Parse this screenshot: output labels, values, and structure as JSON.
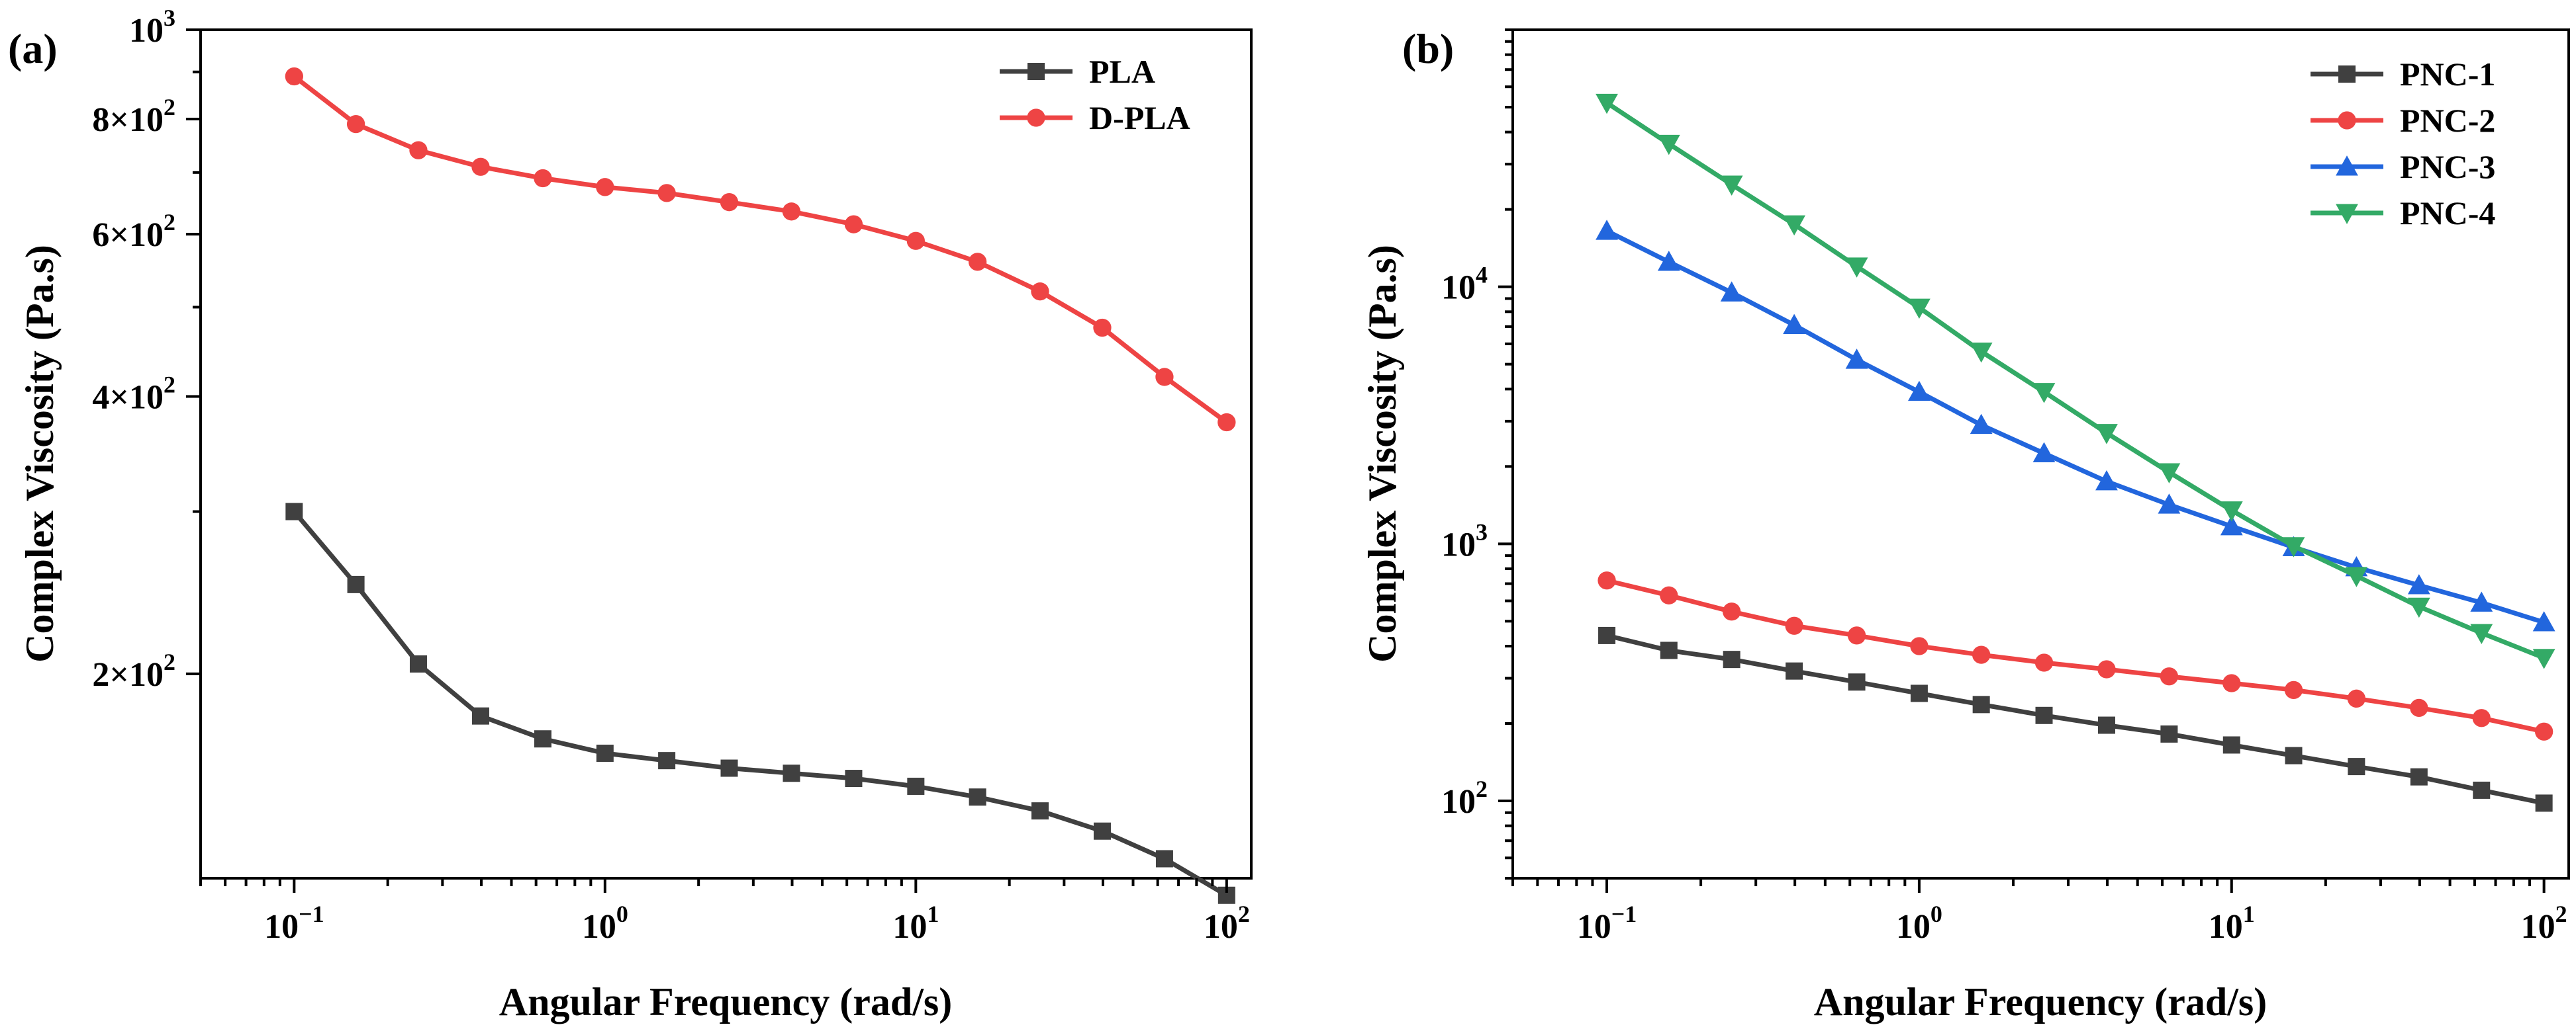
{
  "chart_data": [
    {
      "panel_label": "(a)",
      "type": "line",
      "title": "",
      "xlabel": "Angular Frequency (rad/s)",
      "ylabel": "Complex Viscosity (Pa.s)",
      "x_scale": "log",
      "y_scale": "log",
      "xlim": [
        0.05,
        120
      ],
      "ylim": [
        120,
        1000
      ],
      "x_ticks": [
        {
          "value": 0.1,
          "base": "10",
          "exp": "−1"
        },
        {
          "value": 1,
          "base": "10",
          "exp": "0"
        },
        {
          "value": 10,
          "base": "10",
          "exp": "1"
        },
        {
          "value": 100,
          "base": "10",
          "exp": "2"
        }
      ],
      "y_ticks": [
        {
          "value": 200,
          "base": "2×10",
          "exp": "2"
        },
        {
          "value": 400,
          "base": "4×10",
          "exp": "2"
        },
        {
          "value": 600,
          "base": "6×10",
          "exp": "2"
        },
        {
          "value": 800,
          "base": "8×10",
          "exp": "2"
        },
        {
          "value": 1000,
          "base": "10",
          "exp": "3"
        }
      ],
      "legend_position": "top-right",
      "grid": false,
      "x": [
        0.1,
        0.158,
        0.251,
        0.398,
        0.631,
        1,
        1.58,
        2.51,
        3.98,
        6.31,
        10,
        15.8,
        25.1,
        39.8,
        63.1,
        100
      ],
      "series": [
        {
          "name": "PLA",
          "color": "#404040",
          "marker": "square",
          "values": [
            300,
            250,
            205,
            180,
            170,
            164,
            161,
            158,
            156,
            154,
            151,
            147,
            142,
            135,
            126,
            115
          ]
        },
        {
          "name": "D-PLA",
          "color": "#ee4444",
          "marker": "circle",
          "values": [
            890,
            790,
            740,
            710,
            690,
            675,
            665,
            650,
            635,
            615,
            590,
            560,
            520,
            475,
            420,
            375
          ]
        }
      ]
    },
    {
      "panel_label": "(b)",
      "type": "line",
      "title": "",
      "xlabel": "Angular Frequency (rad/s)",
      "ylabel": "Complex Viscosity (Pa.s)",
      "x_scale": "log",
      "y_scale": "log",
      "xlim": [
        0.05,
        120
      ],
      "ylim": [
        50,
        100000
      ],
      "x_ticks": [
        {
          "value": 0.1,
          "base": "10",
          "exp": "−1"
        },
        {
          "value": 1,
          "base": "10",
          "exp": "0"
        },
        {
          "value": 10,
          "base": "10",
          "exp": "1"
        },
        {
          "value": 100,
          "base": "10",
          "exp": "2"
        }
      ],
      "y_ticks": [
        {
          "value": 100,
          "base": "10",
          "exp": "2"
        },
        {
          "value": 1000,
          "base": "10",
          "exp": "3"
        },
        {
          "value": 10000,
          "base": "10",
          "exp": "4"
        }
      ],
      "legend_position": "top-right",
      "grid": false,
      "x": [
        0.1,
        0.158,
        0.251,
        0.398,
        0.631,
        1,
        1.58,
        2.51,
        3.98,
        6.31,
        10,
        15.8,
        25.1,
        39.8,
        63.1,
        100
      ],
      "series": [
        {
          "name": "PNC-1",
          "color": "#404040",
          "marker": "square",
          "values": [
            440,
            385,
            355,
            320,
            290,
            262,
            237,
            215,
            197,
            182,
            165,
            150,
            136,
            124,
            110,
            98
          ]
        },
        {
          "name": "PNC-2",
          "color": "#ee4444",
          "marker": "circle",
          "values": [
            720,
            630,
            545,
            480,
            440,
            400,
            370,
            345,
            325,
            305,
            287,
            270,
            250,
            230,
            210,
            186
          ]
        },
        {
          "name": "PNC-3",
          "color": "#2266dd",
          "marker": "triangle-up",
          "values": [
            16500,
            12500,
            9500,
            7100,
            5200,
            3900,
            2900,
            2250,
            1750,
            1420,
            1170,
            970,
            810,
            690,
            590,
            495
          ]
        },
        {
          "name": "PNC-4",
          "color": "#33aa66",
          "marker": "triangle-down",
          "values": [
            52000,
            36000,
            25000,
            17500,
            12000,
            8300,
            5600,
            3900,
            2700,
            1900,
            1350,
            980,
            750,
            570,
            450,
            360
          ]
        }
      ]
    }
  ]
}
